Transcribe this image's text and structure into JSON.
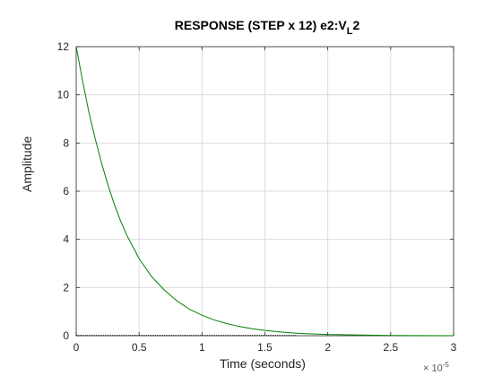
{
  "chart_data": {
    "type": "line",
    "title_main": "RESPONSE (STEP x 12) e2:V",
    "title_sub": "L",
    "title_tail": "2",
    "xlabel": "Time (seconds)",
    "ylabel": "Amplitude",
    "x_exponent_base": "× 10",
    "x_exponent_power": "-5",
    "xlim": [
      0,
      3
    ],
    "ylim": [
      0,
      12
    ],
    "xticks": [
      "0",
      "0.5",
      "1",
      "1.5",
      "2",
      "2.5",
      "3"
    ],
    "yticks": [
      "0",
      "2",
      "4",
      "6",
      "8",
      "10",
      "12"
    ],
    "grid": true,
    "series": [
      {
        "color": "#008000",
        "x": [
          0,
          0.05,
          0.1,
          0.15,
          0.2,
          0.25,
          0.3,
          0.35,
          0.4,
          0.45,
          0.5,
          0.6,
          0.7,
          0.8,
          0.9,
          1.0,
          1.1,
          1.2,
          1.3,
          1.4,
          1.5,
          1.6,
          1.7,
          1.8,
          2.0,
          2.5,
          3.0
        ],
        "y": [
          12,
          10.6,
          9.3,
          8.2,
          7.2,
          6.3,
          5.5,
          4.8,
          4.2,
          3.7,
          3.2,
          2.45,
          1.9,
          1.45,
          1.1,
          0.85,
          0.65,
          0.5,
          0.38,
          0.29,
          0.22,
          0.17,
          0.12,
          0.09,
          0.05,
          0.01,
          0.0
        ]
      }
    ],
    "colors": {
      "axes": "#262626",
      "grid": "#dcdcdc",
      "series": "#008000"
    }
  }
}
